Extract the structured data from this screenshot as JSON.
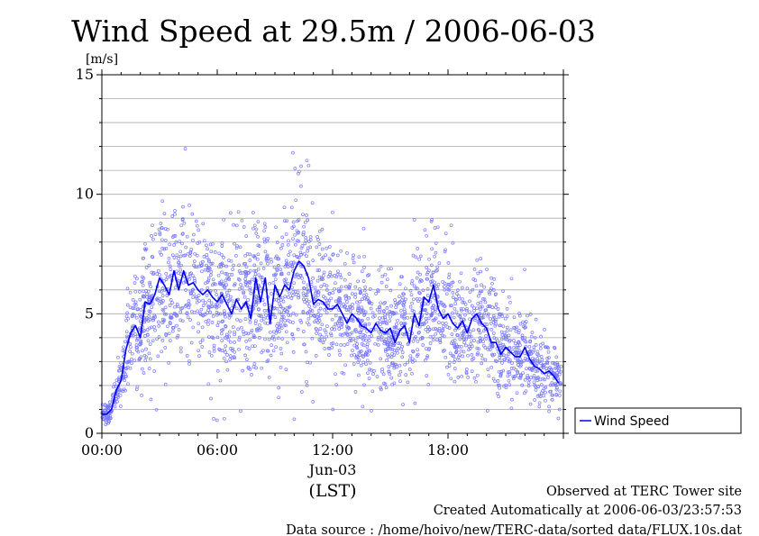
{
  "chart_data": {
    "type": "scatter",
    "title": "Wind Speed at 29.5m / 2006-06-03",
    "ylabel": "[m/s]",
    "xlabel": "(LST)",
    "date_label": "Jun-03",
    "ylim": [
      0,
      15
    ],
    "xlim": [
      0,
      24
    ],
    "y_ticks": [
      "0",
      "5",
      "10",
      "15"
    ],
    "x_ticks": [
      "00:00",
      "06:00",
      "12:00",
      "18:00"
    ],
    "grid": "horizontal",
    "legend_position": "right",
    "colors": {
      "series": "#0000ee",
      "points": "#7777ff",
      "grid": "#aaaaaa"
    },
    "series": [
      {
        "name": "Wind Speed",
        "x_hours": [
          0.0,
          0.25,
          0.5,
          0.75,
          1.0,
          1.25,
          1.5,
          1.75,
          2.0,
          2.25,
          2.5,
          2.75,
          3.0,
          3.25,
          3.5,
          3.75,
          4.0,
          4.25,
          4.5,
          4.75,
          5.0,
          5.25,
          5.5,
          5.75,
          6.0,
          6.25,
          6.5,
          6.75,
          7.0,
          7.25,
          7.5,
          7.75,
          8.0,
          8.25,
          8.5,
          8.75,
          9.0,
          9.25,
          9.5,
          9.75,
          10.0,
          10.25,
          10.5,
          10.75,
          11.0,
          11.25,
          11.5,
          11.75,
          12.0,
          12.25,
          12.5,
          12.75,
          13.0,
          13.25,
          13.5,
          13.75,
          14.0,
          14.25,
          14.5,
          14.75,
          15.0,
          15.25,
          15.5,
          15.75,
          16.0,
          16.25,
          16.5,
          16.75,
          17.0,
          17.25,
          17.5,
          17.75,
          18.0,
          18.25,
          18.5,
          18.75,
          19.0,
          19.25,
          19.5,
          19.75,
          20.0,
          20.25,
          20.5,
          20.75,
          21.0,
          21.25,
          21.5,
          21.75,
          22.0,
          22.25,
          22.5,
          22.75,
          23.0,
          23.25,
          23.5,
          23.75
        ],
        "values": [
          0.8,
          0.8,
          1.0,
          1.8,
          2.2,
          3.5,
          4.2,
          4.5,
          4.0,
          5.5,
          5.4,
          5.8,
          6.5,
          6.2,
          5.8,
          6.8,
          6.0,
          6.8,
          6.2,
          6.3,
          6.0,
          5.8,
          6.0,
          5.7,
          5.5,
          5.8,
          5.4,
          5.0,
          5.6,
          5.2,
          5.5,
          4.8,
          6.5,
          5.5,
          6.5,
          4.6,
          6.2,
          5.7,
          6.2,
          6.0,
          6.8,
          7.2,
          7.0,
          6.5,
          5.4,
          5.6,
          5.5,
          5.2,
          5.2,
          5.4,
          5.0,
          4.6,
          5.0,
          4.8,
          4.5,
          4.4,
          4.2,
          4.6,
          4.3,
          4.2,
          4.4,
          3.8,
          4.3,
          4.5,
          3.8,
          5.0,
          4.5,
          5.7,
          5.5,
          6.2,
          5.2,
          4.8,
          5.0,
          4.6,
          4.4,
          4.7,
          4.2,
          4.8,
          5.0,
          4.6,
          4.4,
          3.8,
          3.8,
          3.3,
          3.6,
          3.4,
          3.2,
          3.2,
          3.6,
          3.1,
          2.8,
          2.7,
          2.5,
          2.6,
          2.4,
          2.1
        ]
      }
    ]
  },
  "footer": {
    "line1": "Observed at TERC Tower site",
    "line2": "Created Automatically at 2006-06-03/23:57:53",
    "line3": "Data source : /home/hoivo/new/TERC-data/sorted  data/FLUX.10s.dat"
  }
}
